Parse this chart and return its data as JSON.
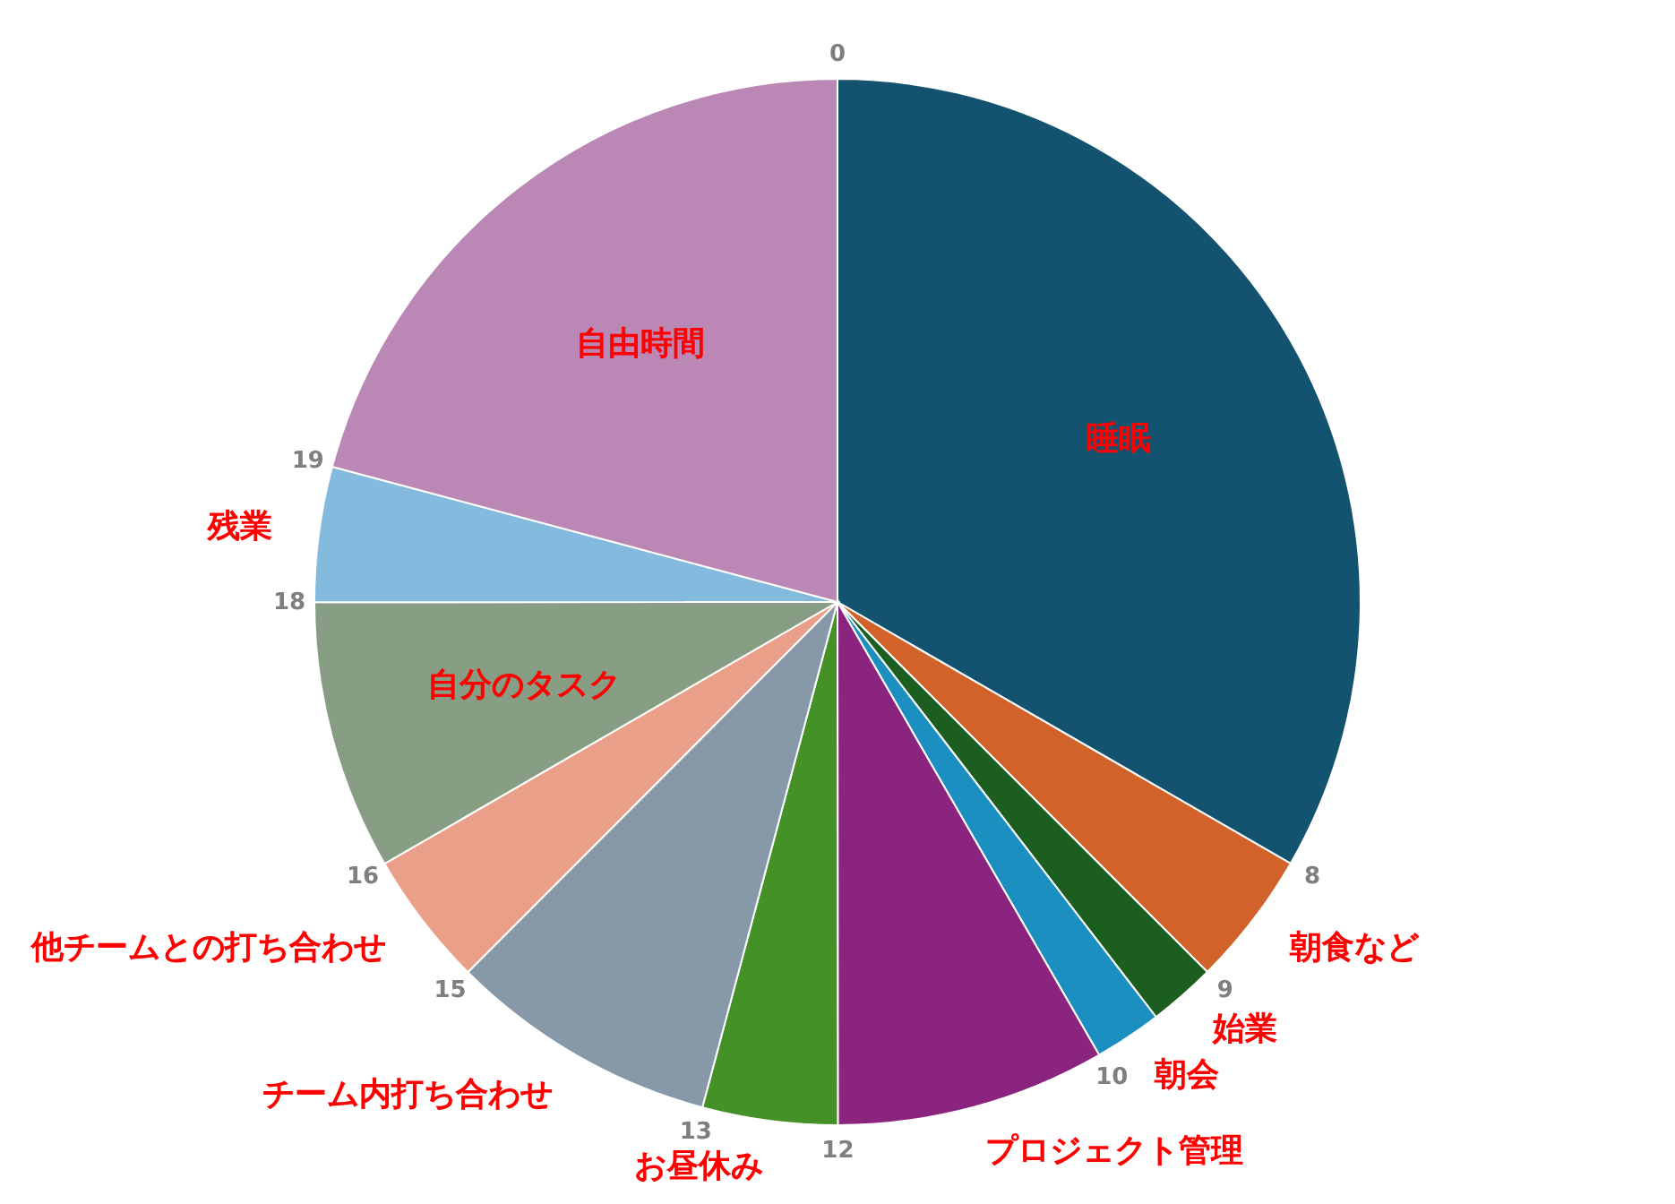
{
  "chart_data": {
    "type": "pie",
    "categories": [
      "睡眠",
      "朝食など",
      "始業",
      "朝会",
      "プロジェクト管理",
      "お昼休み",
      "チーム内打ち合わせ",
      "他チームとの打ち合わせ",
      "自分のタスク",
      "残業",
      "自由時間"
    ],
    "values": [
      33.33,
      4.17,
      2.08,
      2.08,
      8.33,
      4.17,
      8.33,
      4.17,
      8.33,
      4.17,
      20.84
    ],
    "colors": [
      "#14536f",
      "#d0622a",
      "#1b5e20",
      "#1b8fc0",
      "#8b247f",
      "#449128",
      "#8799a8",
      "#eaa088",
      "#879e85",
      "#83bade",
      "#bb88b5"
    ],
    "annotations": [
      {
        "text": "0",
        "x": "睡眠"
      },
      {
        "text": "8",
        "x": "朝食など"
      },
      {
        "text": "9",
        "x": "始業"
      },
      {
        "text": "10",
        "x": "プロジェクト管理"
      },
      {
        "text": "12",
        "x": "お昼休み"
      },
      {
        "text": "13",
        "x": "チーム内打ち合わせ"
      },
      {
        "text": "15",
        "x": "他チームとの打ち合わせ"
      },
      {
        "text": "16",
        "x": "自分のタスク"
      },
      {
        "text": "18",
        "x": "残業"
      },
      {
        "text": "19",
        "x": "自由時間"
      }
    ]
  }
}
